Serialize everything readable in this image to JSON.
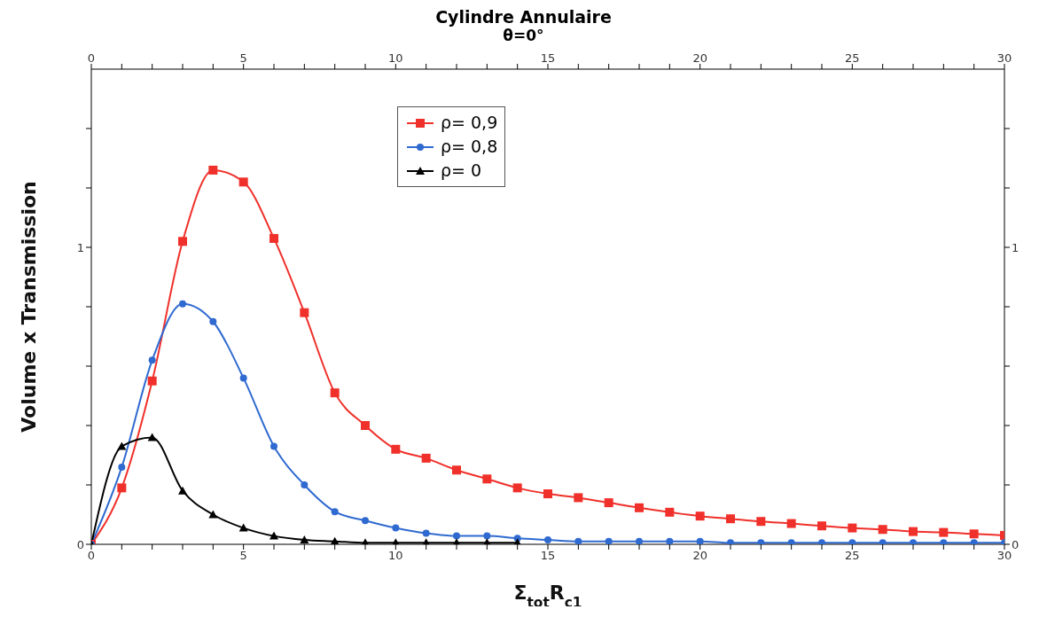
{
  "chart_data": {
    "type": "line",
    "title": "Cylindre Annulaire",
    "subtitle": "θ=0°",
    "xlabel": "Σ$_{tot}$R$_{c1}$",
    "ylabel": "Volume x Transmission",
    "x": [
      0,
      1,
      2,
      3,
      4,
      5,
      6,
      7,
      8,
      9,
      10,
      11,
      12,
      13,
      14,
      15,
      16,
      17,
      18,
      19,
      20,
      21,
      22,
      23,
      24,
      25,
      26,
      27,
      28,
      29,
      30
    ],
    "series": [
      {
        "name": "ρ= 0,9",
        "color": "#f0302a",
        "marker": "square",
        "values": [
          0,
          0.19,
          0.55,
          1.02,
          1.26,
          1.22,
          1.03,
          0.78,
          0.51,
          0.4,
          0.32,
          0.29,
          0.25,
          0.22,
          0.19,
          0.17,
          0.157,
          0.14,
          0.123,
          0.108,
          0.095,
          0.086,
          0.077,
          0.07,
          0.062,
          0.055,
          0.05,
          0.043,
          0.04,
          0.035,
          0.03
        ]
      },
      {
        "name": "ρ= 0,8",
        "color": "#2f6ad0",
        "marker": "circle",
        "values": [
          0,
          0.26,
          0.62,
          0.81,
          0.75,
          0.56,
          0.33,
          0.2,
          0.11,
          0.08,
          0.055,
          0.037,
          0.028,
          0.028,
          0.02,
          0.015,
          0.01,
          0.01,
          0.01,
          0.01,
          0.01,
          0.005,
          0.005,
          0.005,
          0.005,
          0.005,
          0.005,
          0.005,
          0.005,
          0.005,
          0.005
        ]
      },
      {
        "name": "ρ= 0",
        "color": "#000000",
        "marker": "triangle",
        "values": [
          0,
          0.33,
          0.36,
          0.18,
          0.1,
          0.055,
          0.028,
          0.015,
          0.01,
          0.005,
          0.005,
          0.005,
          0.005,
          0.005,
          0.005,
          null,
          null,
          null,
          null,
          null,
          null,
          null,
          null,
          null,
          null,
          null,
          null,
          null,
          null,
          null,
          null
        ]
      }
    ],
    "xlim": [
      0,
      30
    ],
    "xticks": [
      0,
      {
        "value": 1,
        "label": null
      },
      {
        "value": 2,
        "label": null
      },
      {
        "value": 3,
        "label": null
      },
      {
        "value": 4,
        "label": null
      },
      5,
      {
        "value": 6,
        "label": null
      },
      {
        "value": 7,
        "label": null
      },
      {
        "value": 8,
        "label": null
      },
      {
        "value": 9,
        "label": null
      },
      10,
      {
        "value": 11,
        "label": null
      },
      {
        "value": 12,
        "label": null
      },
      {
        "value": 13,
        "label": null
      },
      {
        "value": 14,
        "label": null
      },
      15,
      {
        "value": 16,
        "label": null
      },
      {
        "value": 17,
        "label": null
      },
      {
        "value": 18,
        "label": null
      },
      {
        "value": 19,
        "label": null
      },
      20,
      {
        "value": 21,
        "label": null
      },
      {
        "value": 22,
        "label": null
      },
      {
        "value": 23,
        "label": null
      },
      {
        "value": 24,
        "label": null
      },
      25,
      {
        "value": 26,
        "label": null
      },
      {
        "value": 27,
        "label": null
      },
      {
        "value": 28,
        "label": null
      },
      {
        "value": 29,
        "label": null
      },
      30
    ],
    "x2lim": [
      0,
      30
    ],
    "x2ticks": [
      0,
      {
        "value": 1,
        "label": null
      },
      {
        "value": 2,
        "label": null
      },
      {
        "value": 3,
        "label": null
      },
      {
        "value": 4,
        "label": null
      },
      5,
      {
        "value": 6,
        "label": null
      },
      {
        "value": 7,
        "label": null
      },
      {
        "value": 8,
        "label": null
      },
      {
        "value": 9,
        "label": null
      },
      10,
      {
        "value": 11,
        "label": null
      },
      {
        "value": 12,
        "label": null
      },
      {
        "value": 13,
        "label": null
      },
      {
        "value": 14,
        "label": null
      },
      15,
      {
        "value": 16,
        "label": null
      },
      {
        "value": 17,
        "label": null
      },
      {
        "value": 18,
        "label": null
      },
      {
        "value": 19,
        "label": null
      },
      20,
      {
        "value": 21,
        "label": null
      },
      {
        "value": 22,
        "label": null
      },
      {
        "value": 23,
        "label": null
      },
      {
        "value": 24,
        "label": null
      },
      25,
      {
        "value": 26,
        "label": null
      },
      {
        "value": 27,
        "label": null
      },
      {
        "value": 28,
        "label": null
      },
      {
        "value": 29,
        "label": null
      },
      30
    ],
    "ylim": [
      0,
      1.6
    ],
    "yticks": [
      0,
      {
        "value": 0.2,
        "label": null
      },
      {
        "value": 0.4,
        "label": null
      },
      {
        "value": 0.6,
        "label": null
      },
      {
        "value": 0.8,
        "label": null
      },
      1,
      {
        "value": 1.2,
        "label": null
      },
      {
        "value": 1.4,
        "label": null
      }
    ],
    "y2lim": [
      0,
      1.6
    ],
    "y2ticks": [
      0,
      {
        "value": 0.2,
        "label": null
      },
      {
        "value": 0.4,
        "label": null
      },
      {
        "value": 0.6,
        "label": null
      },
      {
        "value": 0.8,
        "label": null
      },
      1,
      {
        "value": 1.2,
        "label": null
      },
      {
        "value": 1.4,
        "label": null
      }
    ],
    "legend": "top",
    "line_style": "solid",
    "grid": false
  }
}
